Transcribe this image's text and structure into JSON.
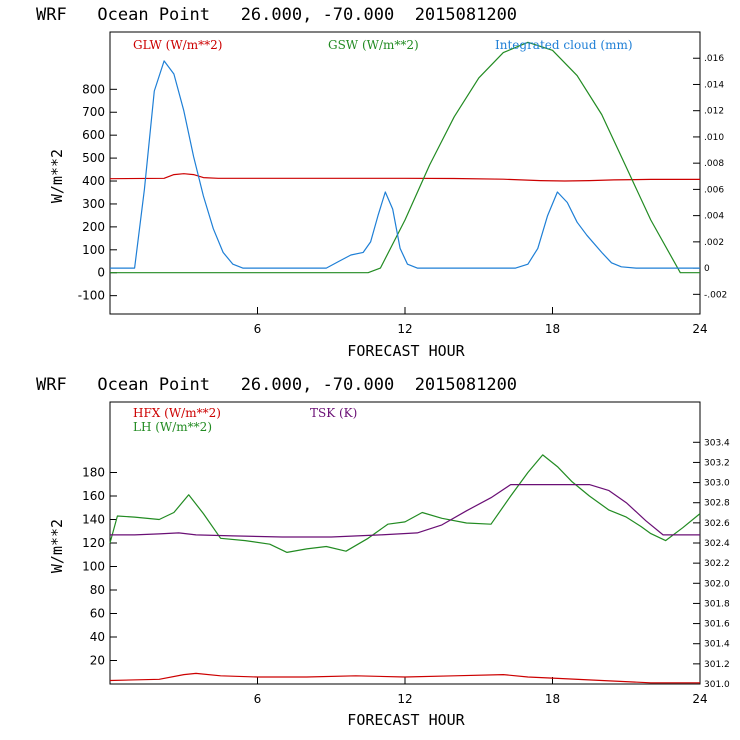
{
  "chart_data": [
    {
      "type": "line",
      "title": "WRF   Ocean Point   26.000, -70.000  2015081200",
      "xlabel": "FORECAST HOUR",
      "ylabel": "W/m**2",
      "xlim": [
        0,
        24
      ],
      "ylim": [
        -180,
        1050
      ],
      "xticks": [
        "6",
        "12",
        "18",
        "24"
      ],
      "yticks": [
        "-100",
        "0",
        "100",
        "200",
        "300",
        "400",
        "500",
        "600",
        "700",
        "800"
      ],
      "y2lim": [
        -0.0035,
        0.018
      ],
      "y2ticks": [
        "-.002",
        "0",
        ".002",
        ".004",
        ".006",
        ".008",
        ".010",
        ".012",
        ".014",
        ".016"
      ],
      "series": [
        {
          "name": "GLW (W/m**2)",
          "color": "#cc0000",
          "axis": "left",
          "x": [
            0,
            2.2,
            2.6,
            3.0,
            3.4,
            3.8,
            4.4,
            6,
            8,
            10,
            12,
            14,
            16,
            17.5,
            18.5,
            19.5,
            20.5,
            22,
            24
          ],
          "y": [
            410,
            412,
            428,
            432,
            428,
            415,
            412,
            412,
            412,
            412,
            412,
            411,
            408,
            402,
            400,
            402,
            405,
            407,
            407
          ]
        },
        {
          "name": "GSW (W/m**2)",
          "color": "#228b22",
          "axis": "left",
          "x": [
            0,
            10.5,
            11.0,
            12,
            13,
            14,
            15,
            16,
            17,
            18,
            19,
            20,
            21,
            22,
            23.2,
            24
          ],
          "y": [
            0,
            0,
            20,
            230,
            470,
            680,
            850,
            960,
            1005,
            970,
            860,
            690,
            460,
            230,
            0,
            0
          ]
        },
        {
          "name": "Integrated cloud (mm)",
          "color": "#1e7fd6",
          "axis": "right",
          "x": [
            0,
            0.8,
            1.0,
            1.4,
            1.8,
            2.2,
            2.6,
            3.0,
            3.4,
            3.8,
            4.2,
            4.6,
            5.0,
            5.4,
            6,
            8,
            8.8,
            9.3,
            9.8,
            10.3,
            10.6,
            10.9,
            11.2,
            11.5,
            11.8,
            12.1,
            12.5,
            13,
            15,
            16.5,
            17.0,
            17.4,
            17.8,
            18.2,
            18.6,
            19.0,
            19.4,
            20.0,
            20.4,
            20.8,
            21.4,
            24
          ],
          "y": [
            0,
            0,
            0,
            0.006,
            0.0135,
            0.0158,
            0.0148,
            0.012,
            0.0085,
            0.0055,
            0.003,
            0.0012,
            0.0003,
            0,
            0,
            0,
            0,
            0.0005,
            0.001,
            0.0012,
            0.002,
            0.004,
            0.0058,
            0.0045,
            0.0015,
            0.0003,
            0,
            0,
            0,
            0,
            0.0003,
            0.0015,
            0.004,
            0.0058,
            0.005,
            0.0035,
            0.0025,
            0.0012,
            0.0004,
            0.0001,
            0,
            0
          ]
        }
      ]
    },
    {
      "type": "line",
      "title": "WRF   Ocean Point   26.000, -70.000  2015081200",
      "xlabel": "FORECAST HOUR",
      "ylabel": "W/m**2",
      "xlim": [
        0,
        24
      ],
      "ylim": [
        0,
        240
      ],
      "xticks": [
        "6",
        "12",
        "18",
        "24"
      ],
      "yticks": [
        "20",
        "40",
        "60",
        "80",
        "100",
        "120",
        "140",
        "160",
        "180"
      ],
      "y2lim": [
        301.0,
        303.8
      ],
      "y2ticks": [
        "301.0",
        "301.2",
        "301.4",
        "301.6",
        "301.8",
        "302.0",
        "302.2",
        "302.4",
        "302.6",
        "302.8",
        "303.0",
        "303.2",
        "303.4"
      ],
      "series": [
        {
          "name": "HFX (W/m**2)",
          "color": "#cc0000",
          "axis": "left",
          "x": [
            0,
            2,
            3.0,
            3.5,
            4.5,
            6,
            8,
            10,
            12,
            14,
            16,
            17,
            18,
            20,
            22,
            24
          ],
          "y": [
            3,
            4,
            8,
            9,
            7,
            6,
            6,
            7,
            6,
            7,
            8,
            6,
            5,
            3,
            1,
            1
          ]
        },
        {
          "name": "LH  (W/m**2)",
          "color": "#228b22",
          "axis": "left",
          "x": [
            0,
            0.3,
            1,
            2,
            2.6,
            3.2,
            3.8,
            4.5,
            5.5,
            6.5,
            7.2,
            8,
            8.8,
            9.6,
            10.5,
            11.3,
            12,
            12.7,
            13.5,
            14.5,
            15.5,
            16.3,
            17,
            17.6,
            18.2,
            18.8,
            19.5,
            20.3,
            21,
            21.6,
            22,
            22.6,
            23.3,
            24
          ],
          "y": [
            120,
            143,
            142,
            140,
            146,
            161,
            145,
            124,
            122,
            119,
            112,
            115,
            117,
            113,
            124,
            136,
            138,
            146,
            141,
            137,
            136,
            160,
            180,
            195,
            185,
            172,
            160,
            148,
            142,
            134,
            128,
            122,
            133,
            145
          ]
        },
        {
          "name": "TSK (K)",
          "color": "#6a0f75",
          "axis": "right",
          "x": [
            0,
            1,
            2,
            2.8,
            3.5,
            5,
            7,
            9,
            11,
            12.5,
            13.5,
            14.5,
            15.5,
            16.3,
            17.5,
            18.5,
            19.5,
            20.3,
            21,
            21.8,
            22.5,
            24
          ],
          "y": [
            302.48,
            302.48,
            302.49,
            302.5,
            302.48,
            302.47,
            302.46,
            302.46,
            302.48,
            302.5,
            302.58,
            302.72,
            302.85,
            302.98,
            302.98,
            302.98,
            302.98,
            302.92,
            302.8,
            302.62,
            302.48,
            302.48
          ]
        }
      ]
    }
  ]
}
